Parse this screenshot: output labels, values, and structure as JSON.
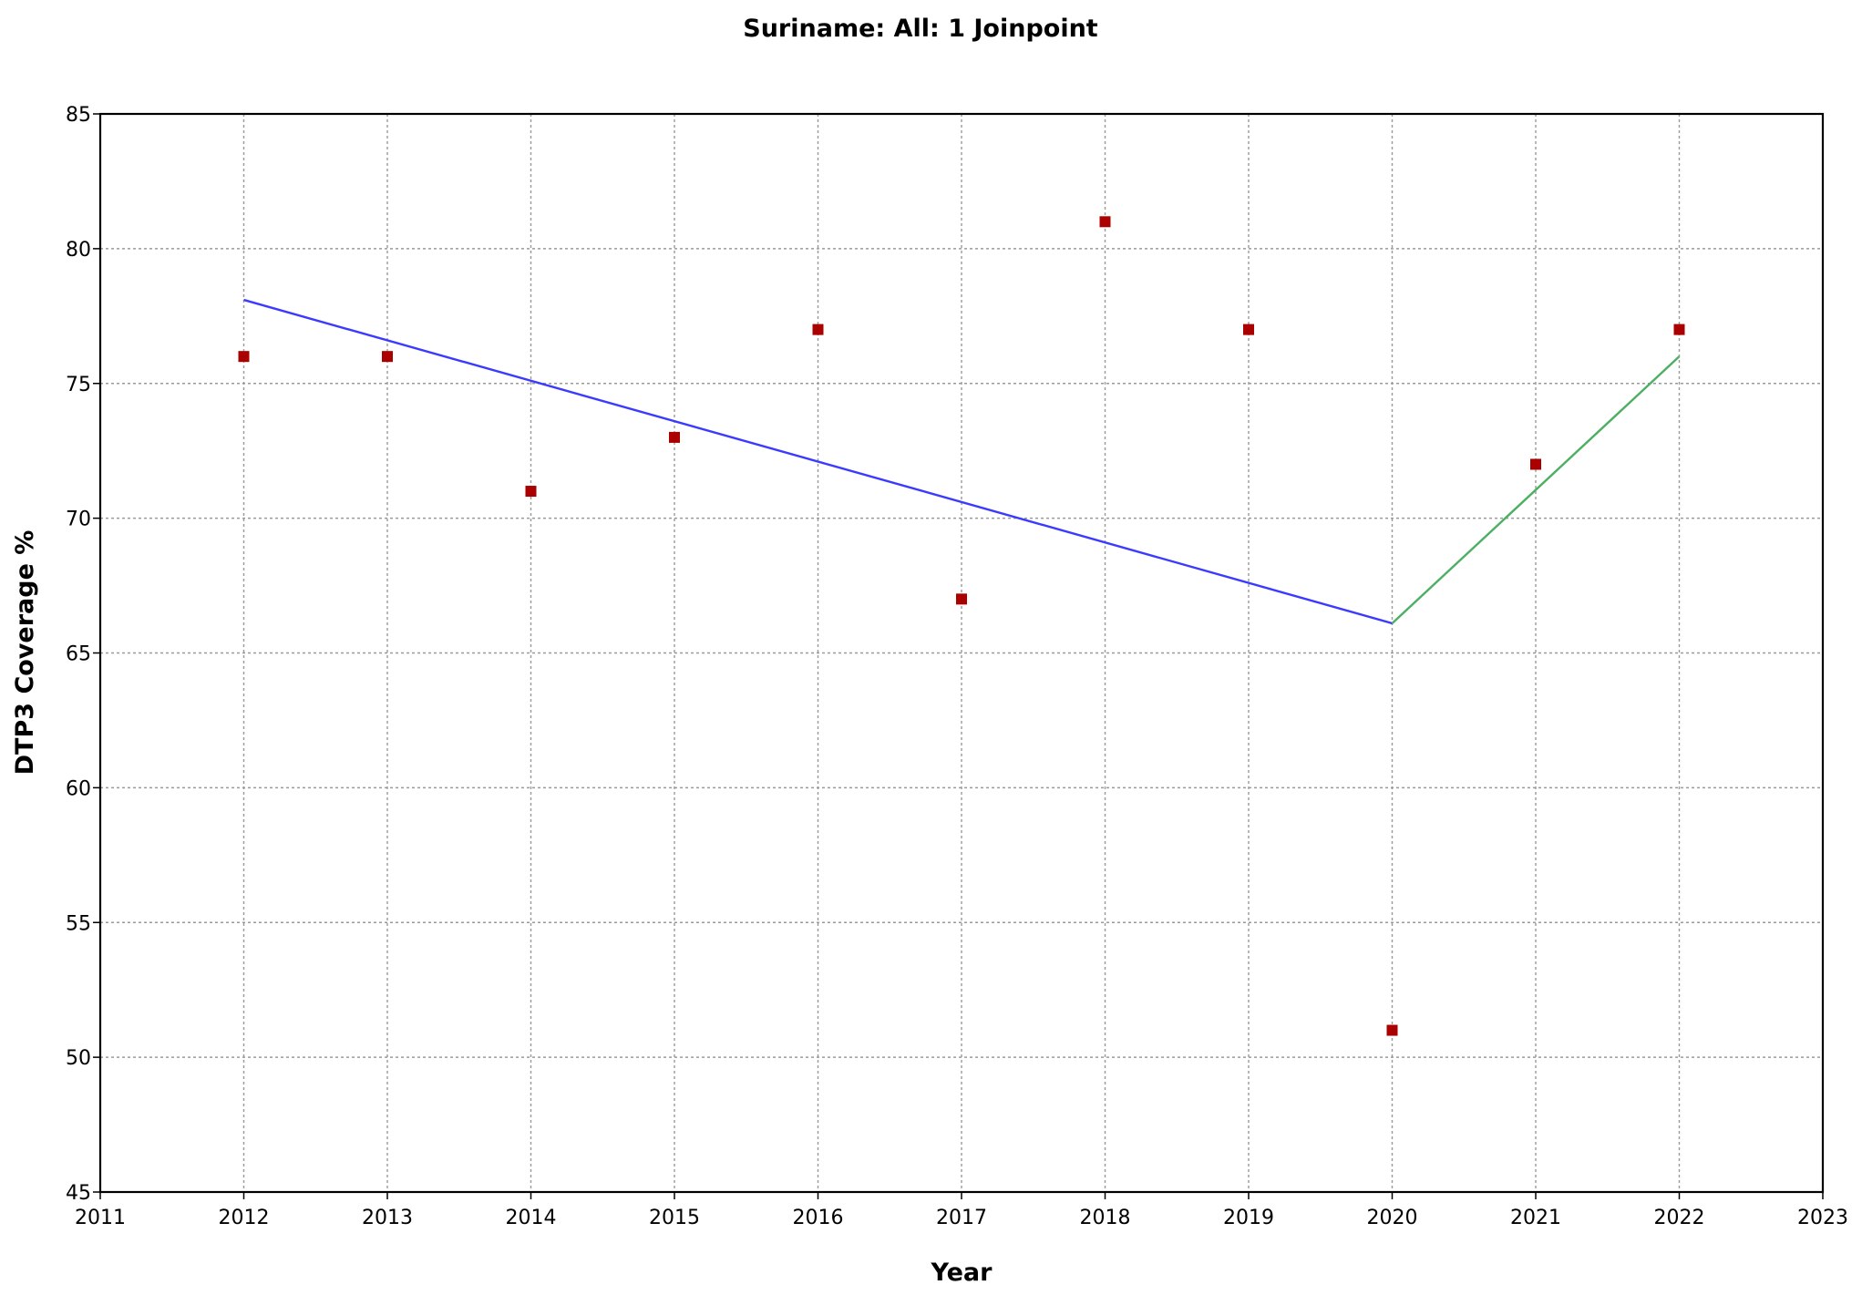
{
  "chart_data": {
    "type": "scatter",
    "title": "Suriname: All: 1 Joinpoint",
    "xlabel": "Year",
    "ylabel": "DTP3 Coverage %",
    "xlim": [
      2011,
      2023
    ],
    "ylim": [
      45,
      85
    ],
    "xticks": [
      2011,
      2012,
      2013,
      2014,
      2015,
      2016,
      2017,
      2018,
      2019,
      2020,
      2021,
      2022,
      2023
    ],
    "yticks": [
      45,
      50,
      55,
      60,
      65,
      70,
      75,
      80,
      85
    ],
    "grid": true,
    "observed": {
      "color": "#aa0000",
      "marker": "square",
      "x": [
        2012,
        2013,
        2014,
        2015,
        2016,
        2017,
        2018,
        2019,
        2020,
        2021,
        2022
      ],
      "y": [
        76,
        76,
        71,
        73,
        77,
        67,
        81,
        77,
        51,
        72,
        77
      ]
    },
    "segments": [
      {
        "color": "#3b3bff",
        "x": [
          2012,
          2020
        ],
        "y": [
          78.1,
          66.1
        ]
      },
      {
        "color": "#4caf62",
        "x": [
          2020,
          2022
        ],
        "y": [
          66.1,
          76.0
        ]
      }
    ]
  }
}
